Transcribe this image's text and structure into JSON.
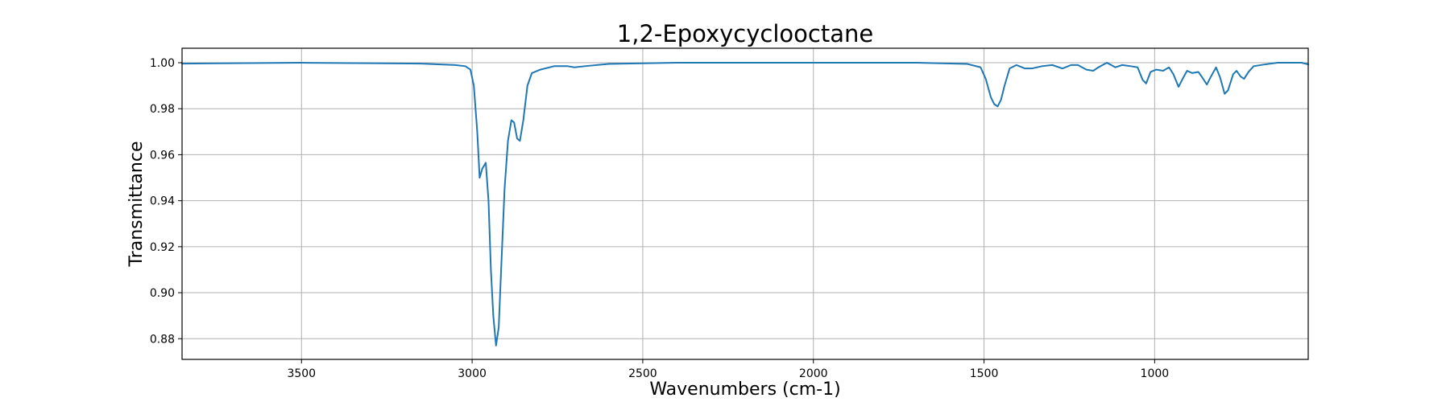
{
  "chart_data": {
    "type": "line",
    "title": "1,2-Epoxycyclooctane",
    "xlabel": "Wavenumbers (cm-1)",
    "ylabel": "Transmittance",
    "xlim": [
      3850,
      550
    ],
    "ylim": [
      0.871,
      1.0063
    ],
    "x_inverted": true,
    "grid": true,
    "legend": "none",
    "xticks": [
      3500,
      3000,
      2500,
      2000,
      1500,
      1000
    ],
    "xtick_labels": [
      "3500",
      "3000",
      "2500",
      "2000",
      "1500",
      "1000"
    ],
    "yticks": [
      0.88,
      0.9,
      0.92,
      0.94,
      0.96,
      0.98,
      1.0
    ],
    "ytick_labels": [
      "0.88",
      "0.90",
      "0.92",
      "0.94",
      "0.96",
      "0.98",
      "1.00"
    ],
    "series": [
      {
        "color": "#1f77b4",
        "points": [
          [
            3850,
            0.9996
          ],
          [
            3700,
            0.9998
          ],
          [
            3500,
            1.0
          ],
          [
            3300,
            0.9998
          ],
          [
            3150,
            0.9996
          ],
          [
            3050,
            0.999
          ],
          [
            3020,
            0.9985
          ],
          [
            3005,
            0.997
          ],
          [
            2995,
            0.99
          ],
          [
            2985,
            0.97
          ],
          [
            2978,
            0.95
          ],
          [
            2970,
            0.954
          ],
          [
            2960,
            0.9565
          ],
          [
            2952,
            0.94
          ],
          [
            2945,
            0.91
          ],
          [
            2938,
            0.89
          ],
          [
            2930,
            0.877
          ],
          [
            2922,
            0.885
          ],
          [
            2915,
            0.91
          ],
          [
            2905,
            0.945
          ],
          [
            2895,
            0.966
          ],
          [
            2885,
            0.975
          ],
          [
            2877,
            0.974
          ],
          [
            2868,
            0.967
          ],
          [
            2860,
            0.966
          ],
          [
            2850,
            0.975
          ],
          [
            2838,
            0.99
          ],
          [
            2825,
            0.9955
          ],
          [
            2800,
            0.997
          ],
          [
            2760,
            0.9985
          ],
          [
            2720,
            0.9985
          ],
          [
            2700,
            0.998
          ],
          [
            2670,
            0.9985
          ],
          [
            2600,
            0.9995
          ],
          [
            2400,
            1.0
          ],
          [
            2000,
            1.0
          ],
          [
            1700,
            1.0
          ],
          [
            1550,
            0.9995
          ],
          [
            1510,
            0.998
          ],
          [
            1495,
            0.993
          ],
          [
            1480,
            0.985
          ],
          [
            1470,
            0.982
          ],
          [
            1460,
            0.981
          ],
          [
            1450,
            0.984
          ],
          [
            1440,
            0.99
          ],
          [
            1425,
            0.9975
          ],
          [
            1405,
            0.999
          ],
          [
            1380,
            0.9975
          ],
          [
            1360,
            0.9975
          ],
          [
            1330,
            0.9985
          ],
          [
            1300,
            0.999
          ],
          [
            1270,
            0.9975
          ],
          [
            1245,
            0.999
          ],
          [
            1225,
            0.999
          ],
          [
            1200,
            0.997
          ],
          [
            1180,
            0.9965
          ],
          [
            1165,
            0.998
          ],
          [
            1140,
            1.0
          ],
          [
            1115,
            0.998
          ],
          [
            1095,
            0.999
          ],
          [
            1070,
            0.9985
          ],
          [
            1050,
            0.998
          ],
          [
            1035,
            0.9925
          ],
          [
            1025,
            0.991
          ],
          [
            1012,
            0.996
          ],
          [
            995,
            0.997
          ],
          [
            975,
            0.9965
          ],
          [
            958,
            0.998
          ],
          [
            945,
            0.995
          ],
          [
            930,
            0.9895
          ],
          [
            918,
            0.993
          ],
          [
            905,
            0.9965
          ],
          [
            890,
            0.9955
          ],
          [
            872,
            0.996
          ],
          [
            860,
            0.9935
          ],
          [
            847,
            0.9905
          ],
          [
            835,
            0.994
          ],
          [
            820,
            0.998
          ],
          [
            808,
            0.9935
          ],
          [
            795,
            0.9865
          ],
          [
            785,
            0.988
          ],
          [
            770,
            0.995
          ],
          [
            760,
            0.9965
          ],
          [
            748,
            0.994
          ],
          [
            738,
            0.993
          ],
          [
            725,
            0.996
          ],
          [
            710,
            0.9985
          ],
          [
            680,
            0.9992
          ],
          [
            640,
            1.0
          ],
          [
            600,
            1.0
          ],
          [
            570,
            1.0
          ],
          [
            550,
            0.9993
          ]
        ]
      }
    ]
  }
}
